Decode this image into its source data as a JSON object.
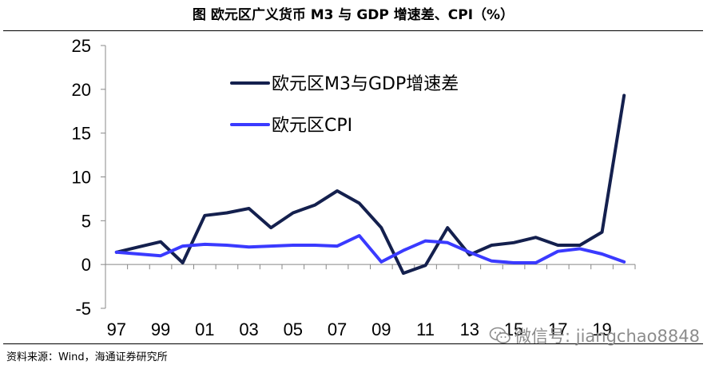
{
  "title": "图  欧元区广义货币 M3 与 GDP 增速差、CPI（%）",
  "source": "资料来源：Wind，海通证券研究所",
  "watermark": "微信号: jiangchao8848",
  "colors": {
    "m3_gdp": "#14204e",
    "cpi": "#3a3aff",
    "axis": "#888888"
  },
  "chart_data": {
    "type": "line",
    "x": [
      1997,
      1998,
      1999,
      2000,
      2001,
      2002,
      2003,
      2004,
      2005,
      2006,
      2007,
      2008,
      2009,
      2010,
      2011,
      2012,
      2013,
      2014,
      2015,
      2016,
      2017,
      2018,
      2019,
      2020
    ],
    "x_tick_labels": [
      "97",
      "99",
      "01",
      "03",
      "05",
      "07",
      "09",
      "11",
      "13",
      "15",
      "17",
      "19"
    ],
    "y_ticks": [
      25,
      20,
      15,
      10,
      5,
      0,
      -5
    ],
    "y_tick_labels": [
      "25",
      "20",
      "15",
      "10",
      "5",
      "0",
      "-5"
    ],
    "ylim": [
      -5,
      25
    ],
    "xlabel": "",
    "ylabel": "",
    "legend_position": "top-center",
    "series": [
      {
        "name": "欧元区M3与GDP增速差",
        "values": [
          1.4,
          2.0,
          2.6,
          0.2,
          5.6,
          5.9,
          6.4,
          4.2,
          5.9,
          6.8,
          8.4,
          7.0,
          4.2,
          -1.0,
          -0.1,
          4.2,
          1.1,
          2.2,
          2.5,
          3.1,
          2.2,
          2.2,
          3.7,
          19.3
        ]
      },
      {
        "name": "欧元区CPI",
        "values": [
          1.4,
          1.2,
          1.0,
          2.1,
          2.3,
          2.2,
          2.0,
          2.1,
          2.2,
          2.2,
          2.1,
          3.3,
          0.3,
          1.6,
          2.7,
          2.5,
          1.4,
          0.4,
          0.2,
          0.2,
          1.5,
          1.8,
          1.2,
          0.3
        ]
      }
    ]
  }
}
